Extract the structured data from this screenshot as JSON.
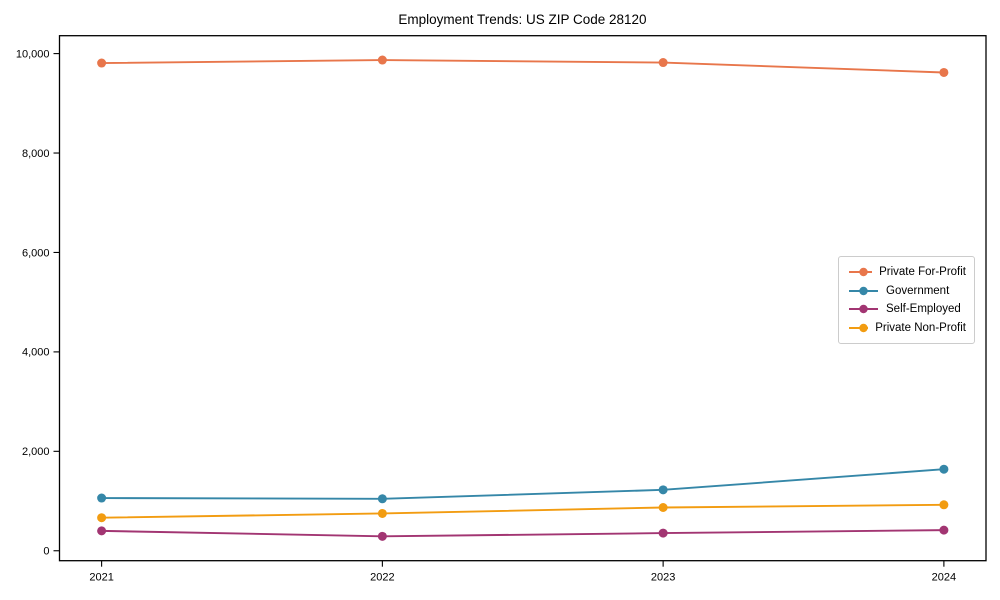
{
  "chart_data": {
    "type": "line",
    "title": "Employment Trends: US ZIP Code 28120",
    "x": [
      2021,
      2022,
      2023,
      2024
    ],
    "categories": [
      "2021",
      "2022",
      "2023",
      "2024"
    ],
    "series": [
      {
        "name": "Private For-Profit",
        "color": "#E8764B",
        "values": [
          9810,
          9870,
          9820,
          9620
        ]
      },
      {
        "name": "Government",
        "color": "#3587A8",
        "values": [
          1060,
          1045,
          1225,
          1640
        ]
      },
      {
        "name": "Self-Employed",
        "color": "#A23572",
        "values": [
          400,
          290,
          355,
          415
        ]
      },
      {
        "name": "Private Non-Profit",
        "color": "#F29C11",
        "values": [
          665,
          750,
          870,
          925
        ]
      }
    ],
    "xlabel": "",
    "ylabel": "",
    "xlim": [
      2020.85,
      2024.15
    ],
    "ylim": [
      -200,
      10360
    ],
    "yticks": [
      0,
      2000,
      4000,
      6000,
      8000,
      10000
    ],
    "ytick_labels": [
      "0",
      "2,000",
      "4,000",
      "6,000",
      "8,000",
      "10,000"
    ],
    "grid": false,
    "marker": "circle",
    "legend_position": "center-right",
    "axis_color": "#000000",
    "background_color": "#ffffff"
  }
}
